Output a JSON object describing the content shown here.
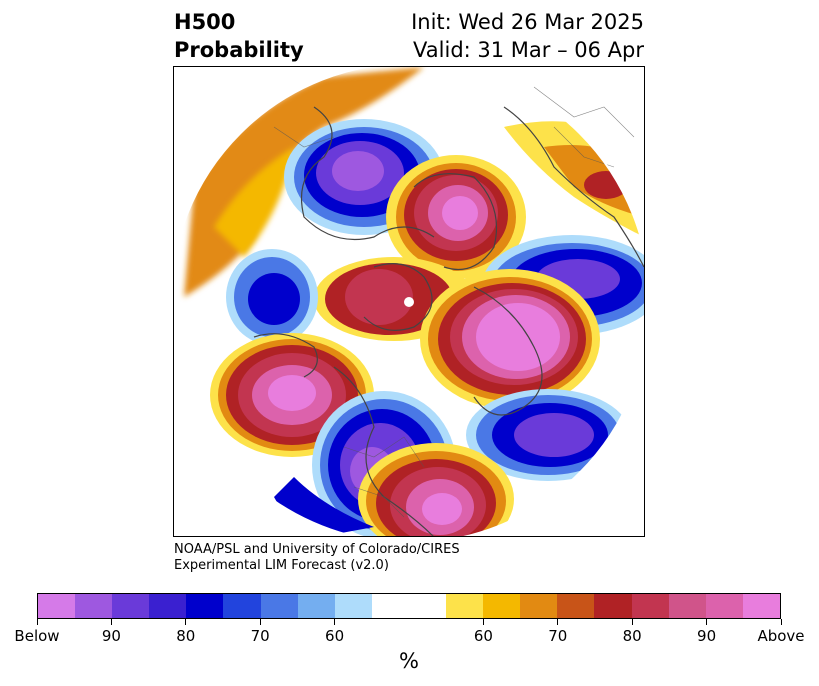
{
  "header": {
    "title_line1": "H500",
    "title_line2": "Probability",
    "init_label": "Init: Wed 26 Mar 2025",
    "valid_label": "Valid: 31 Mar – 06 Apr"
  },
  "credit": {
    "line1": "NOAA/PSL and University of Colorado/CIRES",
    "line2": "Experimental LIM Forecast (v2.0)"
  },
  "colorbar": {
    "colors": [
      "#d57ae8",
      "#9e58e0",
      "#6a3ad9",
      "#3a20d0",
      "#0000cc",
      "#2244dd",
      "#4a78e6",
      "#74aef0",
      "#aedcfb",
      "#ffffff",
      "#ffffff",
      "#fde24a",
      "#f4b800",
      "#e28a12",
      "#c85418",
      "#b02225",
      "#c23550",
      "#d0548a",
      "#dc62ac",
      "#e87ddd"
    ],
    "tick_labels": [
      "Below",
      "90",
      "80",
      "70",
      "60",
      "60",
      "70",
      "80",
      "90",
      "Above"
    ],
    "unit": "%"
  },
  "map": {
    "projection": "north-polar-stereographic",
    "palette": {
      "above_high": "#e87ddd",
      "above_mid": "#c23550",
      "above_low": "#fde24a",
      "below_high": "#9e58e0",
      "below_mid": "#0000cc",
      "below_low": "#aedcfb"
    }
  }
}
